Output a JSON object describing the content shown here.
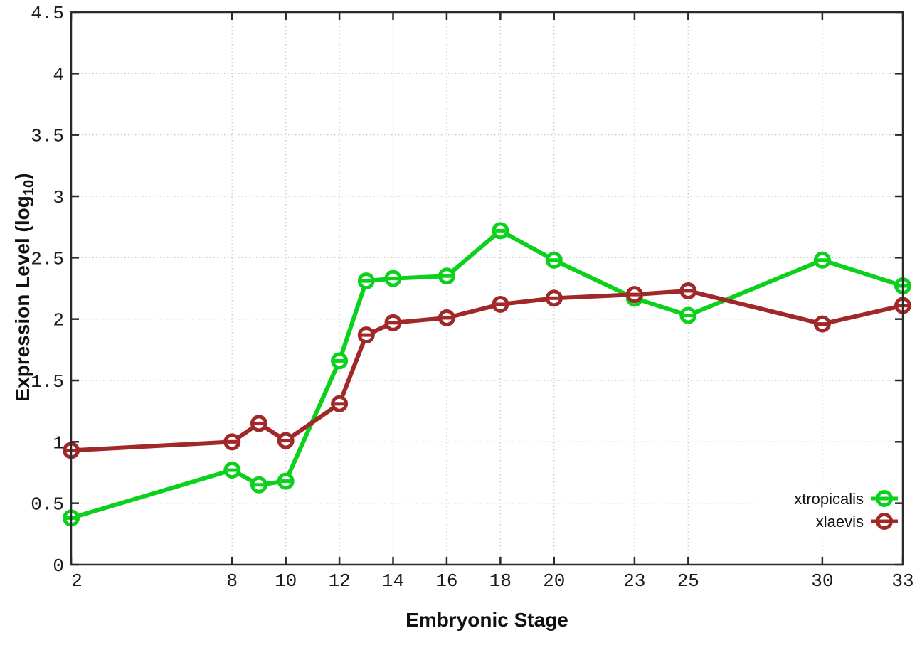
{
  "figure": {
    "xlabel": "Embryonic Stage",
    "ylabel_main": "Expression Level (log",
    "ylabel_sub": "10",
    "ylabel_close": ")",
    "background": "#ffffff",
    "axis_color": "#2a2a2a",
    "grid_color": "#c9c9c9"
  },
  "chart_data": {
    "type": "line",
    "title": "",
    "xlabel": "Embryonic Stage",
    "ylabel": "Expression Level (log10)",
    "x": [
      2,
      8,
      9,
      10,
      12,
      13,
      14,
      16,
      18,
      20,
      23,
      25,
      30,
      33
    ],
    "series": [
      {
        "name": "xtropicalis",
        "color": "#0cd11c",
        "marker": "open-circle",
        "values": [
          0.38,
          0.77,
          0.65,
          0.68,
          1.66,
          2.31,
          2.33,
          2.35,
          2.72,
          2.48,
          2.17,
          2.03,
          2.48,
          2.27
        ]
      },
      {
        "name": "xlaevis",
        "color": "#a02828",
        "marker": "open-circle",
        "values": [
          0.93,
          1.0,
          1.15,
          1.01,
          1.31,
          1.87,
          1.97,
          2.01,
          2.12,
          2.17,
          2.2,
          2.23,
          1.96,
          2.11
        ]
      }
    ],
    "xticks": [
      2,
      8,
      10,
      12,
      14,
      16,
      18,
      20,
      23,
      25,
      30,
      33
    ],
    "yticks": [
      0,
      0.5,
      1,
      1.5,
      2,
      2.5,
      3,
      3.5,
      4,
      4.5
    ],
    "xlim": [
      2,
      33
    ],
    "ylim": [
      0,
      4.5
    ],
    "grid": true,
    "grid_style": "dotted",
    "legend_position": "bottom-right",
    "legend_entries": [
      "xtropicalis",
      "xlaevis"
    ]
  }
}
